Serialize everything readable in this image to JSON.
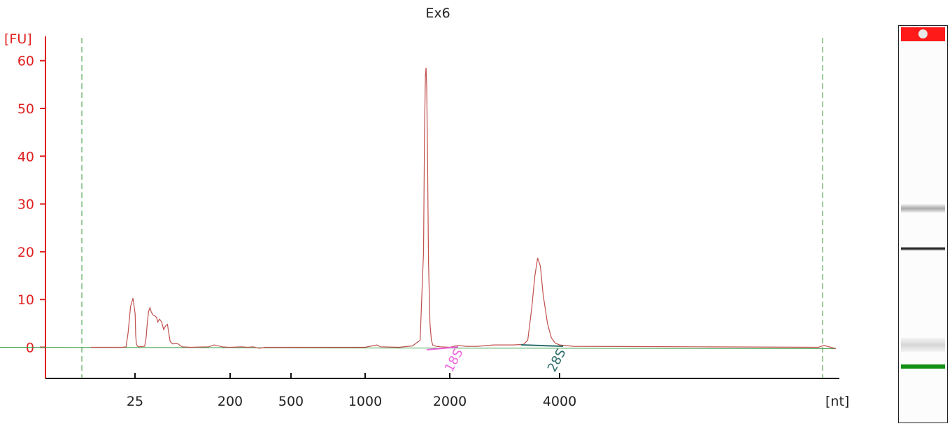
{
  "chart_data": {
    "type": "line",
    "title": "Ex6",
    "ylabel": "[FU]",
    "xlabel": "[nt]",
    "ylim": [
      -6.5,
      65
    ],
    "yticks": [
      0,
      10,
      20,
      30,
      40,
      50,
      60
    ],
    "xticks": [
      25,
      200,
      500,
      1000,
      2000,
      4000
    ],
    "xscale": "nonlinear (electropherogram migration)",
    "grid": false,
    "colors": {
      "trace": "#c0504d",
      "y_axis": "#e02020",
      "marker_lines": "#3a9a3a",
      "baseline": "#3aa04a",
      "peak_18S": "#ee66dd",
      "peak_28S": "#2d6e6a"
    },
    "series": [
      {
        "x": [
          3.4,
          8.8,
          14.7,
          18.7,
          20.6,
          21.6,
          22.8,
          24.0,
          25.2,
          26.3,
          27.6,
          29.6,
          31.7,
          42.8,
          45.4,
          47.5,
          50.0,
          52.6,
          55.0,
          58.0,
          61.4,
          64.8,
          67.0,
          70.1,
          74.0,
          77.8,
          81.3,
          84.7,
          86.6,
          89.7,
          94.4,
          99.3,
          104.4,
          111.6,
          126.7,
          160.5,
          170.7,
          185.4,
          196.3,
          200.0,
          257.1,
          285.7,
          314.3,
          342.9,
          371.4,
          400.0,
          434.0,
          451.0,
          468.0,
          486.0,
          503.0,
          520.0,
          600.0,
          800.0,
          1000.0,
          1139.0,
          1181.0,
          1400.0,
          1560.0,
          1650.0,
          1690.0,
          1702.0,
          1712.0,
          1720.0,
          1728.0,
          1737.0,
          1749.0,
          1766.0,
          1783.0,
          1800.0,
          1845.0,
          1890.0,
          2000.0,
          2147.0,
          2300.0,
          2500.0,
          2800.0,
          3150.0,
          3340.0,
          3420.0,
          3490.0,
          3550.0,
          3600.0,
          3650.0,
          3700.0,
          3780.0,
          3850.0,
          3920.0,
          4000.0
        ],
        "values": [
          0,
          0,
          0,
          0,
          0.1,
          3.0,
          8.5,
          10.3,
          7.0,
          2.5,
          0.7,
          0.2,
          0.1,
          0.2,
          2.0,
          5.0,
          7.5,
          8.3,
          7.4,
          6.8,
          6.6,
          6.2,
          5.3,
          5.9,
          5.3,
          3.7,
          4.5,
          4.8,
          3.3,
          1.2,
          0.7,
          0.8,
          0.7,
          0.1,
          0,
          0.1,
          0.5,
          0.1,
          0,
          0,
          0.1,
          0,
          0.1,
          -0.2,
          0,
          0,
          0,
          0,
          0,
          0,
          0,
          0,
          0,
          0,
          0,
          0.5,
          0.1,
          0,
          0.3,
          1.5,
          20.0,
          45.0,
          57.0,
          58.5,
          54.0,
          40.0,
          18.0,
          5.0,
          1.5,
          0.4,
          0.2,
          0.1,
          0,
          0.4,
          0.2,
          0.2,
          0.5,
          0.5,
          0.6,
          1.5,
          8.0,
          15.0,
          18.7,
          17.0,
          11.0,
          5.0,
          2.0,
          0.9,
          0.5
        ]
      }
    ],
    "markers": [
      "18S",
      "28S"
    ],
    "gel_bands": [
      "top-marker",
      "band-28S",
      "band-18S",
      "band-lower",
      "lower-marker"
    ]
  }
}
